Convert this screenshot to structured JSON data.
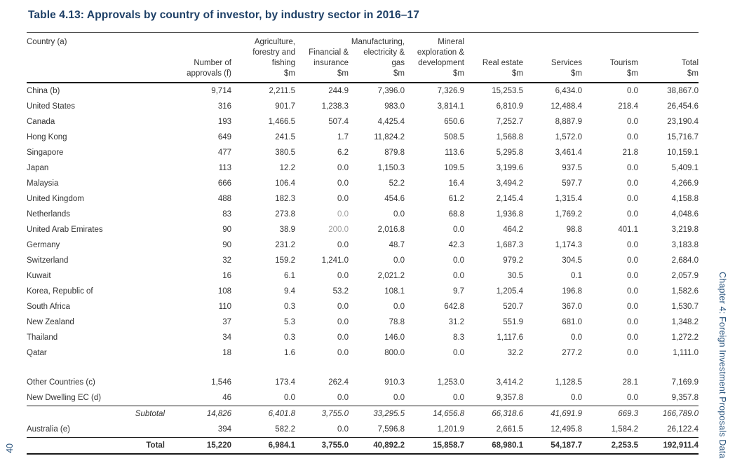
{
  "page": {
    "title": "Table 4.13: Approvals by country of investor, by industry sector in 2016–17",
    "page_number": "40",
    "chapter_label": "Chapter 4: Foreign Investment Proposals Data"
  },
  "colors": {
    "title_navy": "#1d3f66",
    "sidebar_navy": "#27527c",
    "body_text": "#333333",
    "muted_text": "#9b9b9b",
    "rule": "#1a1a1a"
  },
  "table": {
    "columns": [
      {
        "id": "country",
        "header": "Country (a)"
      },
      {
        "id": "approvals",
        "header": "Number of\napprovals (f)"
      },
      {
        "id": "agriculture",
        "header": "Agriculture,\nforestry and\nfishing\n$m"
      },
      {
        "id": "financial",
        "header": "Financial &\ninsurance\n$m"
      },
      {
        "id": "manufacturing",
        "header": "Manufacturing,\nelectricity &\ngas\n$m"
      },
      {
        "id": "mineral",
        "header": "Mineral\nexploration &\ndevelopment\n$m"
      },
      {
        "id": "real-estate",
        "header": "Real estate\n$m"
      },
      {
        "id": "services",
        "header": "Services\n$m"
      },
      {
        "id": "tourism",
        "header": "Tourism\n$m"
      },
      {
        "id": "total",
        "header": "Total\n$m"
      }
    ],
    "rows": [
      {
        "type": "country",
        "label": "China (b)",
        "values": [
          "9,714",
          "2,211.5",
          "244.9",
          "7,396.0",
          "7,326.9",
          "15,253.5",
          "6,434.0",
          "0.0",
          "38,867.0"
        ]
      },
      {
        "type": "country",
        "label": "United States",
        "values": [
          "316",
          "901.7",
          "1,238.3",
          "983.0",
          "3,814.1",
          "6,810.9",
          "12,488.4",
          "218.4",
          "26,454.6"
        ]
      },
      {
        "type": "country",
        "label": "Canada",
        "values": [
          "193",
          "1,466.5",
          "507.4",
          "4,425.4",
          "650.6",
          "7,252.7",
          "8,887.9",
          "0.0",
          "23,190.4"
        ]
      },
      {
        "type": "country",
        "label": "Hong Kong",
        "values": [
          "649",
          "241.5",
          "1.7",
          "11,824.2",
          "508.5",
          "1,568.8",
          "1,572.0",
          "0.0",
          "15,716.7"
        ]
      },
      {
        "type": "country",
        "label": "Singapore",
        "values": [
          "477",
          "380.5",
          "6.2",
          "879.8",
          "113.6",
          "5,295.8",
          "3,461.4",
          "21.8",
          "10,159.1"
        ]
      },
      {
        "type": "country",
        "label": "Japan",
        "values": [
          "113",
          "12.2",
          "0.0",
          "1,150.3",
          "109.5",
          "3,199.6",
          "937.5",
          "0.0",
          "5,409.1"
        ]
      },
      {
        "type": "country",
        "label": "Malaysia",
        "values": [
          "666",
          "106.4",
          "0.0",
          "52.2",
          "16.4",
          "3,494.2",
          "597.7",
          "0.0",
          "4,266.9"
        ]
      },
      {
        "type": "country",
        "label": "United Kingdom",
        "values": [
          "488",
          "182.3",
          "0.0",
          "454.6",
          "61.2",
          "2,145.4",
          "1,315.4",
          "0.0",
          "4,158.8"
        ]
      },
      {
        "type": "country",
        "label": "Netherlands",
        "values": [
          "83",
          "273.8",
          "0.0",
          "0.0",
          "68.8",
          "1,936.8",
          "1,769.2",
          "0.0",
          "4,048.6"
        ],
        "muted": [
          2
        ]
      },
      {
        "type": "country",
        "label": "United Arab Emirates",
        "values": [
          "90",
          "38.9",
          "200.0",
          "2,016.8",
          "0.0",
          "464.2",
          "98.8",
          "401.1",
          "3,219.8"
        ],
        "muted": [
          2
        ]
      },
      {
        "type": "country",
        "label": "Germany",
        "values": [
          "90",
          "231.2",
          "0.0",
          "48.7",
          "42.3",
          "1,687.3",
          "1,174.3",
          "0.0",
          "3,183.8"
        ]
      },
      {
        "type": "country",
        "label": "Switzerland",
        "values": [
          "32",
          "159.2",
          "1,241.0",
          "0.0",
          "0.0",
          "979.2",
          "304.5",
          "0.0",
          "2,684.0"
        ]
      },
      {
        "type": "country",
        "label": "Kuwait",
        "values": [
          "16",
          "6.1",
          "0.0",
          "2,021.2",
          "0.0",
          "30.5",
          "0.1",
          "0.0",
          "2,057.9"
        ]
      },
      {
        "type": "country",
        "label": "Korea, Republic of",
        "values": [
          "108",
          "9.4",
          "53.2",
          "108.1",
          "9.7",
          "1,205.4",
          "196.8",
          "0.0",
          "1,582.6"
        ]
      },
      {
        "type": "country",
        "label": "South Africa",
        "values": [
          "110",
          "0.3",
          "0.0",
          "0.0",
          "642.8",
          "520.7",
          "367.0",
          "0.0",
          "1,530.7"
        ]
      },
      {
        "type": "country",
        "label": "New Zealand",
        "values": [
          "37",
          "5.3",
          "0.0",
          "78.8",
          "31.2",
          "551.9",
          "681.0",
          "0.0",
          "1,348.2"
        ]
      },
      {
        "type": "country",
        "label": "Thailand",
        "values": [
          "34",
          "0.3",
          "0.0",
          "146.0",
          "8.3",
          "1,117.6",
          "0.0",
          "0.0",
          "1,272.2"
        ]
      },
      {
        "type": "country",
        "label": "Qatar",
        "values": [
          "18",
          "1.6",
          "0.0",
          "800.0",
          "0.0",
          "32.2",
          "277.2",
          "0.0",
          "1,111.0"
        ]
      },
      {
        "type": "spacer"
      },
      {
        "type": "country",
        "label": "Other Countries (c)",
        "values": [
          "1,546",
          "173.4",
          "262.4",
          "910.3",
          "1,253.0",
          "3,414.2",
          "1,128.5",
          "28.1",
          "7,169.9"
        ]
      },
      {
        "type": "country",
        "label": "New Dwelling EC (d)",
        "values": [
          "46",
          "0.0",
          "0.0",
          "0.0",
          "0.0",
          "9,357.8",
          "0.0",
          "0.0",
          "9,357.8"
        ]
      },
      {
        "type": "subtotal",
        "label": "Subtotal",
        "rule_above": true,
        "values": [
          "14,826",
          "6,401.8",
          "3,755.0",
          "33,295.5",
          "14,656.8",
          "66,318.6",
          "41,691.9",
          "669.3",
          "166,789.0"
        ]
      },
      {
        "type": "country",
        "label": "Australia (e)",
        "values": [
          "394",
          "582.2",
          "0.0",
          "7,596.8",
          "1,201.9",
          "2,661.5",
          "12,495.8",
          "1,584.2",
          "26,122.4"
        ]
      },
      {
        "type": "total",
        "label": "Total",
        "rule_above": true,
        "values": [
          "15,220",
          "6,984.1",
          "3,755.0",
          "40,892.2",
          "15,858.7",
          "68,980.1",
          "54,187.7",
          "2,253.5",
          "192,911.4"
        ]
      }
    ]
  }
}
